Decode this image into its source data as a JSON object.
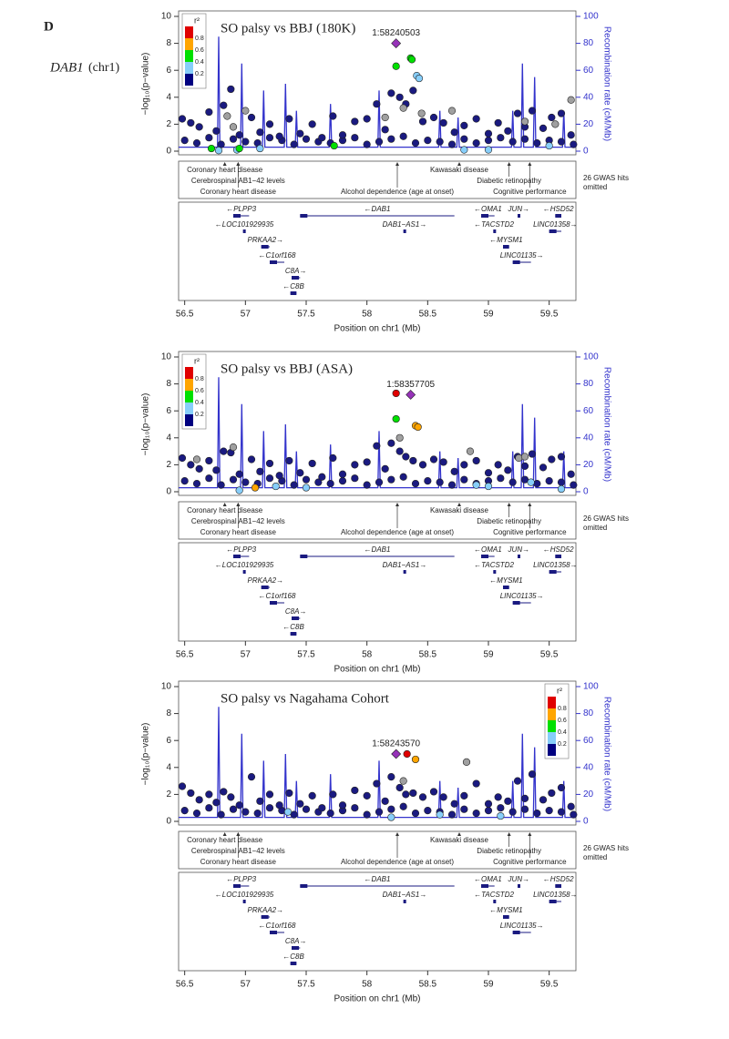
{
  "panel_label": "D",
  "locus_gene": "DAB1",
  "locus_chr": "(chr1)",
  "recombination": {
    "x": [
      56.45,
      56.77,
      56.78,
      56.79,
      56.96,
      56.97,
      56.98,
      57.14,
      57.15,
      57.16,
      57.32,
      57.33,
      57.34,
      57.41,
      57.42,
      57.43,
      57.69,
      57.7,
      57.71,
      58.09,
      58.1,
      58.11,
      58.59,
      58.6,
      58.61,
      58.74,
      58.75,
      58.76,
      59.19,
      59.2,
      59.21,
      59.27,
      59.28,
      59.29,
      59.37,
      59.38,
      59.39,
      59.61,
      59.62,
      59.63,
      59.72
    ],
    "values": [
      3,
      3,
      85,
      3,
      3,
      65,
      3,
      3,
      45,
      3,
      3,
      50,
      3,
      3,
      30,
      3,
      3,
      35,
      3,
      3,
      45,
      3,
      3,
      30,
      3,
      3,
      25,
      3,
      3,
      30,
      3,
      3,
      65,
      3,
      3,
      55,
      3,
      3,
      30,
      3,
      3
    ],
    "color": "#3333cc"
  },
  "gwas_catalog": {
    "hits": [
      {
        "label": "Coronary heart disease",
        "pos": 56.83
      },
      {
        "label": "Cerebrospinal AB1−42 levels",
        "pos": 56.94
      },
      {
        "label": "Coronary heart disease",
        "pos": 56.94
      },
      {
        "label": "Alcohol dependence (age at onset)",
        "pos": 58.25
      },
      {
        "label": "Kawasaki disease",
        "pos": 58.76
      },
      {
        "label": "Diabetic retinopathy",
        "pos": 59.17
      },
      {
        "label": "Cognitive performance",
        "pos": 59.34
      }
    ],
    "omitted_note": [
      "26 GWAS hits",
      "omitted"
    ]
  },
  "genes": [
    {
      "label": "←PLPP3",
      "start": 56.9,
      "end": 57.03
    },
    {
      "label": "←DAB1",
      "start": 57.45,
      "end": 58.72
    },
    {
      "label": "←OMA1",
      "start": 58.94,
      "end": 59.05
    },
    {
      "label": "JUN→",
      "start": 59.24,
      "end": 59.26
    },
    {
      "label": "←HSD52",
      "start": 59.55,
      "end": 59.6
    },
    {
      "label": "←LOC101929935",
      "start": 56.98,
      "end": 57.0
    },
    {
      "label": "DAB1−AS1→",
      "start": 58.3,
      "end": 58.32
    },
    {
      "label": "←TACSTD2",
      "start": 59.04,
      "end": 59.05
    },
    {
      "label": "LINC01358→",
      "start": 59.5,
      "end": 59.6
    },
    {
      "label": "PRKAA2→",
      "start": 57.13,
      "end": 57.2
    },
    {
      "label": "←MYSM1",
      "start": 59.12,
      "end": 59.17
    },
    {
      "label": "←C1orf168",
      "start": 57.2,
      "end": 57.32
    },
    {
      "label": "LINC01135→",
      "start": 59.2,
      "end": 59.35
    },
    {
      "label": "C8A→",
      "start": 57.38,
      "end": 57.45
    },
    {
      "label": "←C8B",
      "start": 57.37,
      "end": 57.42
    }
  ],
  "chart_data": [
    {
      "type": "scatter",
      "title": "SO palsy  vs  BBJ (180K)",
      "lead_snp": "1:58240503",
      "ylabel": "−log₁₀(p−value)",
      "y2label": "Recombination rate (cM/Mb)",
      "xlabel": "Position on chr1 (Mb)",
      "xlim": [
        56.45,
        59.72
      ],
      "xticks": [
        56.5,
        57,
        57.5,
        58,
        58.5,
        59,
        59.5
      ],
      "ylim": [
        0,
        10
      ],
      "yticks": [
        0,
        2,
        4,
        6,
        8,
        10
      ],
      "y2lim": [
        0,
        100
      ],
      "y2ticks": [
        0,
        20,
        40,
        60,
        80,
        100
      ],
      "legend": {
        "title": "r²",
        "corner": "top-left",
        "ticks": [
          0.2,
          0.4,
          0.6,
          0.8
        ],
        "colors": [
          "#000080",
          "#87cefa",
          "#00e000",
          "#ffa500",
          "#e00000"
        ]
      },
      "series": [
        {
          "color": "#1a1a80",
          "x": [
            56.5,
            56.6,
            56.7,
            56.8,
            56.9,
            57.0,
            57.1,
            57.2,
            57.3,
            57.4,
            57.5,
            57.6,
            57.7,
            57.8,
            57.9,
            58.0,
            58.1,
            58.2,
            58.3,
            58.4,
            58.5,
            58.6,
            58.7,
            58.8,
            58.9,
            59.0,
            59.1,
            59.2,
            59.3,
            59.4,
            59.5,
            59.6,
            59.7
          ],
          "values": [
            0.8,
            0.6,
            1.0,
            0.5,
            0.9,
            0.7,
            0.6,
            1.0,
            0.8,
            0.5,
            0.9,
            0.7,
            0.6,
            0.8,
            1.0,
            0.5,
            0.7,
            0.9,
            1.1,
            0.6,
            0.8,
            0.7,
            0.5,
            0.9,
            0.6,
            0.8,
            1.0,
            0.7,
            0.9,
            0.6,
            0.8,
            0.7,
            0.5
          ]
        },
        {
          "color": "#1a1a80",
          "x": [
            56.48,
            56.55,
            56.62,
            56.7,
            56.76,
            56.82,
            56.88,
            56.95,
            57.05,
            57.12,
            57.2,
            57.28,
            57.36,
            57.45,
            57.55,
            57.63,
            57.72,
            57.8,
            57.9,
            58.0,
            58.08,
            58.15,
            58.2,
            58.27,
            58.32,
            58.38,
            58.46,
            58.55,
            58.63,
            58.72,
            58.8,
            58.9,
            59.0,
            59.08,
            59.16,
            59.24,
            59.3,
            59.36,
            59.45,
            59.52,
            59.6,
            59.68
          ],
          "values": [
            2.4,
            2.1,
            1.8,
            2.9,
            1.5,
            3.4,
            4.6,
            1.2,
            2.5,
            1.4,
            2.0,
            1.1,
            2.4,
            1.3,
            2.0,
            1.0,
            2.6,
            1.2,
            2.2,
            2.4,
            3.5,
            1.6,
            4.3,
            4.0,
            3.5,
            4.5,
            2.2,
            2.5,
            2.1,
            1.4,
            1.9,
            2.4,
            1.3,
            2.1,
            1.5,
            2.8,
            1.8,
            3.0,
            1.7,
            2.5,
            2.8,
            1.2
          ]
        },
        {
          "color": "#a0a0a0",
          "x": [
            56.85,
            56.9,
            57.0,
            58.15,
            58.3,
            58.45,
            58.7,
            59.3,
            59.55,
            59.68
          ],
          "values": [
            2.6,
            1.8,
            3.0,
            2.5,
            3.2,
            2.8,
            3.0,
            2.2,
            2.0,
            3.8
          ]
        },
        {
          "color": "#87cefa",
          "x": [
            56.78,
            56.93,
            57.12,
            58.41,
            58.43,
            58.8,
            59.0,
            59.5
          ],
          "values": [
            0.05,
            0.1,
            0.2,
            5.6,
            5.4,
            0.1,
            0.1,
            0.4
          ]
        },
        {
          "color": "#00e000",
          "x": [
            56.72,
            56.95,
            57.73,
            58.24,
            58.36,
            58.37
          ],
          "values": [
            0.2,
            0.2,
            0.4,
            6.3,
            6.9,
            6.8
          ]
        },
        {
          "color": "#9632b8",
          "marker": "diamond",
          "x": [
            58.24
          ],
          "values": [
            8.0
          ]
        }
      ]
    },
    {
      "type": "scatter",
      "title": "SO palsy  vs  BBJ (ASA)",
      "lead_snp": "1:58357705",
      "ylabel": "−log₁₀(p−value)",
      "y2label": "Recombination rate (cM/Mb)",
      "xlabel": "Position on chr1 (Mb)",
      "xlim": [
        56.45,
        59.72
      ],
      "xticks": [
        56.5,
        57,
        57.5,
        58,
        58.5,
        59,
        59.5
      ],
      "ylim": [
        0,
        10
      ],
      "yticks": [
        0,
        2,
        4,
        6,
        8,
        10
      ],
      "y2lim": [
        0,
        100
      ],
      "y2ticks": [
        0,
        20,
        40,
        60,
        80,
        100
      ],
      "legend": {
        "title": "r²",
        "corner": "top-left",
        "ticks": [
          0.2,
          0.4,
          0.6,
          0.8
        ],
        "colors": [
          "#000080",
          "#87cefa",
          "#00e000",
          "#ffa500",
          "#e00000"
        ]
      },
      "series": [
        {
          "color": "#1a1a80",
          "x": [
            56.5,
            56.6,
            56.7,
            56.8,
            56.9,
            57.0,
            57.1,
            57.2,
            57.3,
            57.4,
            57.5,
            57.6,
            57.7,
            57.8,
            57.9,
            58.0,
            58.1,
            58.2,
            58.3,
            58.4,
            58.5,
            58.6,
            58.7,
            58.8,
            58.9,
            59.0,
            59.1,
            59.2,
            59.3,
            59.4,
            59.5,
            59.6,
            59.7
          ],
          "values": [
            0.8,
            0.6,
            1.0,
            0.5,
            0.9,
            0.7,
            0.6,
            1.0,
            0.8,
            0.5,
            0.9,
            0.7,
            0.6,
            0.8,
            1.0,
            0.5,
            0.7,
            0.9,
            1.1,
            0.6,
            0.8,
            0.7,
            0.5,
            0.9,
            0.6,
            0.8,
            1.0,
            0.7,
            0.9,
            0.6,
            0.8,
            0.7,
            0.5
          ]
        },
        {
          "color": "#1a1a80",
          "x": [
            56.48,
            56.55,
            56.62,
            56.7,
            56.76,
            56.82,
            56.88,
            56.95,
            57.05,
            57.12,
            57.2,
            57.28,
            57.36,
            57.45,
            57.55,
            57.63,
            57.72,
            57.8,
            57.9,
            58.0,
            58.08,
            58.15,
            58.2,
            58.27,
            58.32,
            58.38,
            58.46,
            58.55,
            58.63,
            58.72,
            58.8,
            58.9,
            59.0,
            59.08,
            59.16,
            59.24,
            59.3,
            59.36,
            59.45,
            59.52,
            59.6,
            59.68
          ],
          "values": [
            2.5,
            2.0,
            1.7,
            2.3,
            1.6,
            3.0,
            2.9,
            1.3,
            2.4,
            1.5,
            2.1,
            1.2,
            2.3,
            1.4,
            2.1,
            1.1,
            2.5,
            1.3,
            2.0,
            2.2,
            3.4,
            1.7,
            3.6,
            3.0,
            2.6,
            2.3,
            2.0,
            2.4,
            2.2,
            1.5,
            2.0,
            2.3,
            1.4,
            2.0,
            1.6,
            2.6,
            1.9,
            2.8,
            1.8,
            2.4,
            2.6,
            1.3
          ]
        },
        {
          "color": "#a0a0a0",
          "x": [
            56.6,
            56.9,
            58.27,
            58.85,
            59.25,
            59.3
          ],
          "values": [
            2.4,
            3.3,
            4.0,
            3.0,
            2.5,
            2.6
          ]
        },
        {
          "color": "#87cefa",
          "x": [
            56.95,
            57.25,
            57.5,
            58.9,
            59.0,
            59.35,
            59.6
          ],
          "values": [
            0.1,
            0.4,
            0.3,
            0.5,
            0.4,
            0.7,
            0.2
          ]
        },
        {
          "color": "#00e000",
          "x": [
            58.24
          ],
          "values": [
            5.4
          ]
        },
        {
          "color": "#ffa500",
          "x": [
            57.08,
            58.4,
            58.42
          ],
          "values": [
            0.3,
            4.9,
            4.8
          ]
        },
        {
          "color": "#e00000",
          "x": [
            58.24
          ],
          "values": [
            7.3
          ]
        },
        {
          "color": "#9632b8",
          "marker": "diamond",
          "x": [
            58.36
          ],
          "values": [
            7.2
          ]
        }
      ]
    },
    {
      "type": "scatter",
      "title": "SO palsy  vs  Nagahama Cohort",
      "lead_snp": "1:58243570",
      "ylabel": "−log₁₀(p−value)",
      "y2label": "Recombination rate (cM/Mb)",
      "xlabel": "Position on chr1 (Mb)",
      "xlim": [
        56.45,
        59.72
      ],
      "xticks": [
        56.5,
        57,
        57.5,
        58,
        58.5,
        59,
        59.5
      ],
      "ylim": [
        0,
        10
      ],
      "yticks": [
        0,
        2,
        4,
        6,
        8,
        10
      ],
      "y2lim": [
        0,
        100
      ],
      "y2ticks": [
        0,
        20,
        40,
        60,
        80,
        100
      ],
      "legend": {
        "title": "r²",
        "corner": "top-right",
        "ticks": [
          0.2,
          0.4,
          0.6,
          0.8
        ],
        "colors": [
          "#000080",
          "#87cefa",
          "#00e000",
          "#ffa500",
          "#e00000"
        ]
      },
      "series": [
        {
          "color": "#1a1a80",
          "x": [
            56.5,
            56.6,
            56.7,
            56.8,
            56.9,
            57.0,
            57.1,
            57.2,
            57.3,
            57.4,
            57.5,
            57.6,
            57.7,
            57.8,
            57.9,
            58.0,
            58.1,
            58.2,
            58.3,
            58.4,
            58.5,
            58.6,
            58.7,
            58.8,
            58.9,
            59.0,
            59.1,
            59.2,
            59.3,
            59.4,
            59.5,
            59.6,
            59.7
          ],
          "values": [
            0.8,
            0.6,
            1.0,
            0.5,
            0.9,
            0.7,
            0.6,
            1.0,
            0.8,
            0.5,
            0.9,
            0.7,
            0.6,
            0.8,
            1.0,
            0.5,
            0.7,
            0.9,
            1.1,
            0.6,
            0.8,
            0.7,
            0.5,
            0.9,
            0.6,
            0.8,
            1.0,
            0.7,
            0.9,
            0.6,
            0.8,
            0.7,
            0.5
          ]
        },
        {
          "color": "#1a1a80",
          "x": [
            56.48,
            56.55,
            56.62,
            56.7,
            56.76,
            56.82,
            56.88,
            56.95,
            57.05,
            57.12,
            57.2,
            57.28,
            57.36,
            57.45,
            57.55,
            57.63,
            57.72,
            57.8,
            57.9,
            58.0,
            58.08,
            58.15,
            58.2,
            58.27,
            58.32,
            58.38,
            58.46,
            58.55,
            58.63,
            58.72,
            58.8,
            58.9,
            59.0,
            59.08,
            59.16,
            59.24,
            59.3,
            59.36,
            59.45,
            59.52,
            59.6,
            59.68
          ],
          "values": [
            2.6,
            2.1,
            1.6,
            2.0,
            1.4,
            2.2,
            1.8,
            1.2,
            3.3,
            1.5,
            2.0,
            1.2,
            2.1,
            1.3,
            1.9,
            1.0,
            2.0,
            1.2,
            2.3,
            1.9,
            2.8,
            1.5,
            3.3,
            2.5,
            2.0,
            2.1,
            1.8,
            2.2,
            1.8,
            1.3,
            1.9,
            2.8,
            1.3,
            1.8,
            1.5,
            3.0,
            1.7,
            3.5,
            1.6,
            2.1,
            2.5,
            1.1
          ]
        },
        {
          "color": "#a0a0a0",
          "x": [
            58.3,
            58.82
          ],
          "values": [
            3.0,
            4.4
          ]
        },
        {
          "color": "#87cefa",
          "x": [
            57.35,
            58.2,
            58.6,
            59.1
          ],
          "values": [
            0.7,
            0.3,
            0.5,
            0.4
          ]
        },
        {
          "color": "#ffa500",
          "x": [
            58.4
          ],
          "values": [
            4.6
          ]
        },
        {
          "color": "#e00000",
          "x": [
            58.33
          ],
          "values": [
            5.0
          ]
        },
        {
          "color": "#9632b8",
          "marker": "diamond",
          "x": [
            58.24
          ],
          "values": [
            5.0
          ]
        }
      ]
    }
  ]
}
